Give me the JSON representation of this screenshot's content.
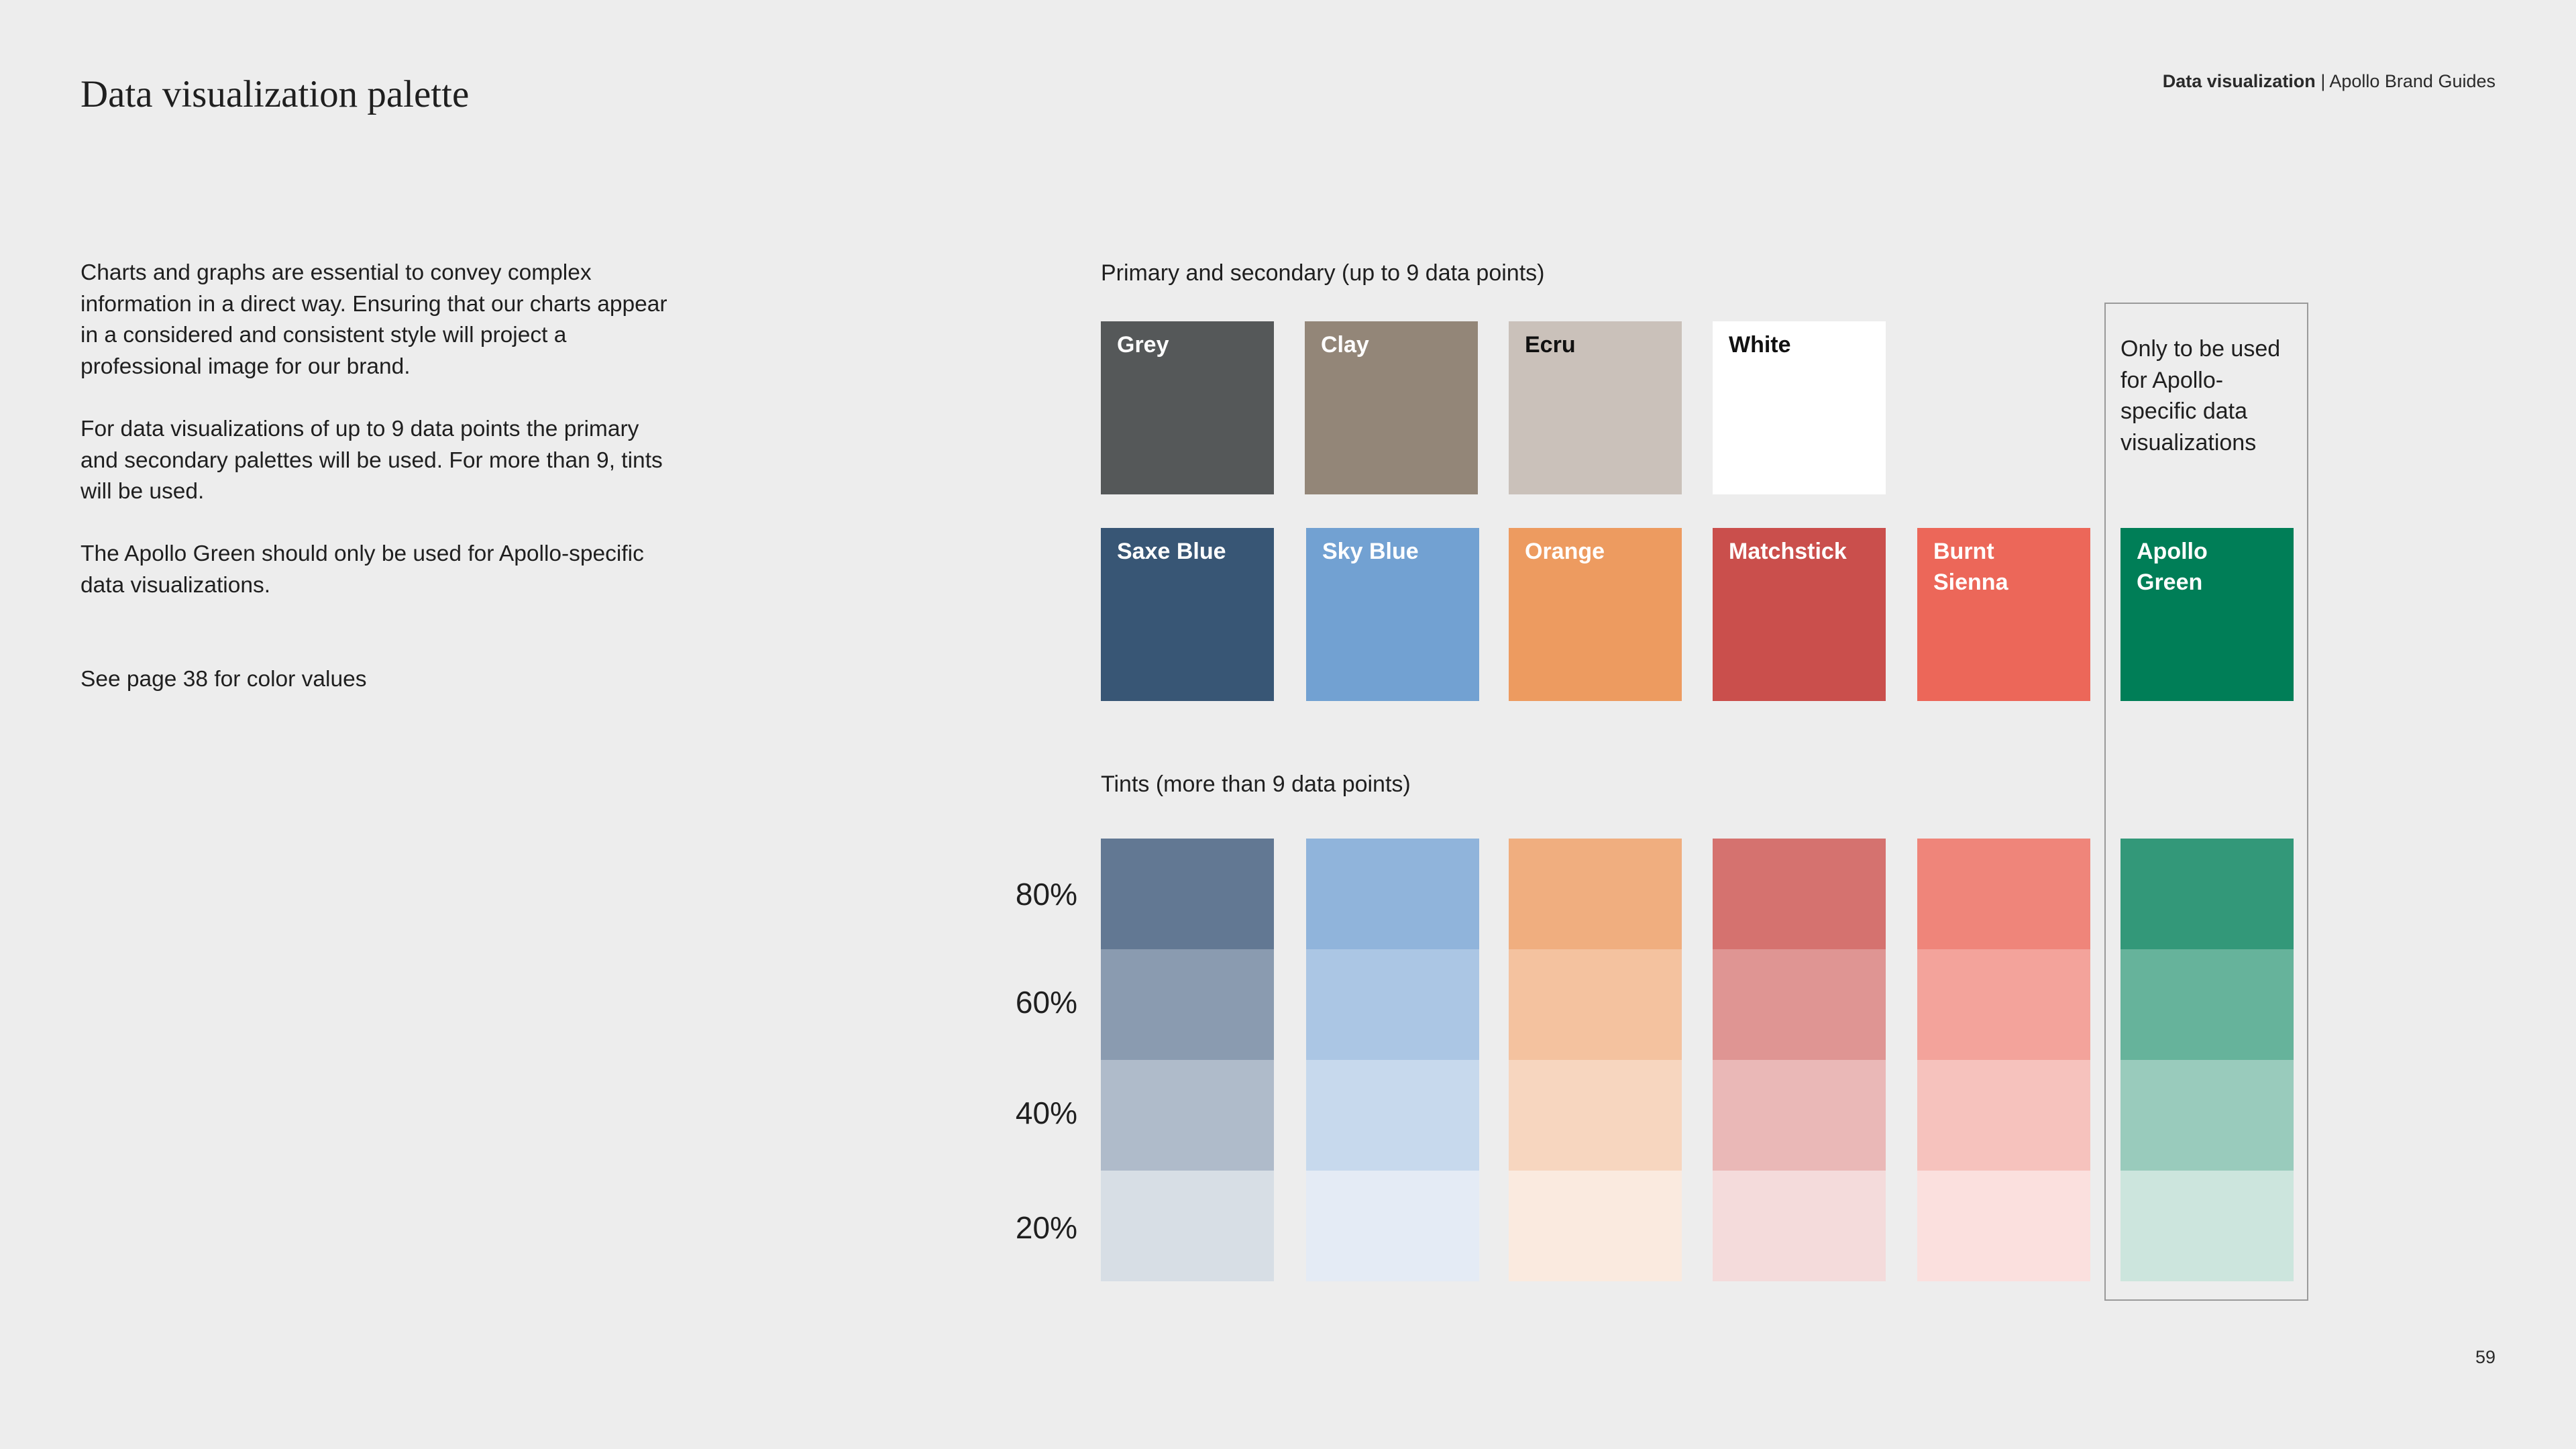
{
  "page": {
    "title": "Data visualization palette",
    "header_section": "Data visualization",
    "header_separator": " | ",
    "header_doc": "Apollo Brand Guides",
    "page_number": "59"
  },
  "intro": {
    "p1": "Charts and graphs are essential to convey complex information in a direct way. Ensuring that our charts appear in a considered and consistent style will project a professional image for our brand.",
    "p2": "For data visualizations of up to 9 data points the primary and secondary palettes will be used. For more than 9, tints will be used.",
    "p3": "The Apollo Green should only be used for Apollo-specific data visualizations.",
    "p4": "See page 38 for color values"
  },
  "primary": {
    "label": "Primary and secondary (up to 9 data points)",
    "swatches": [
      {
        "name": "Grey",
        "color": "#555859",
        "text_color": "#ffffff"
      },
      {
        "name": "Clay",
        "color": "#938678",
        "text_color": "#ffffff"
      },
      {
        "name": "Ecru",
        "color": "#cac1ba",
        "text_color": "#111111"
      },
      {
        "name": "White",
        "color": "#ffffff",
        "text_color": "#111111"
      }
    ]
  },
  "secondary": {
    "swatches": [
      {
        "name": "Saxe Blue",
        "color": "#385675",
        "text_color": "#ffffff"
      },
      {
        "name": "Sky Blue",
        "color": "#72a1d2",
        "text_color": "#ffffff"
      },
      {
        "name": "Orange",
        "color": "#ed9b60",
        "text_color": "#ffffff"
      },
      {
        "name": "Matchstick",
        "color": "#ca4f4c",
        "text_color": "#ffffff"
      },
      {
        "name": "Burnt Sienna",
        "color": "#ec6759",
        "text_color": "#ffffff"
      },
      {
        "name": "Apollo Green",
        "color": "#007e57",
        "text_color": "#ffffff"
      }
    ]
  },
  "restricted_note": "Only to be used for Apollo-specific data visualizations",
  "tints": {
    "label": "Tints (more than 9 data points)",
    "levels": [
      "80%",
      "60%",
      "40%",
      "20%"
    ],
    "columns": [
      {
        "name": "Saxe Blue",
        "colors": [
          "#627893",
          "#8a9bb0",
          "#afbbca",
          "#d7dee5"
        ]
      },
      {
        "name": "Sky Blue",
        "colors": [
          "#90b4db",
          "#abc6e4",
          "#c7d9ed",
          "#e4ebf5"
        ]
      },
      {
        "name": "Orange",
        "colors": [
          "#f0ae7f",
          "#f4c29f",
          "#f7d6bf",
          "#faeadf"
        ]
      },
      {
        "name": "Matchstick",
        "colors": [
          "#d5726f",
          "#df9593",
          "#eab8b7",
          "#f4dbdb"
        ]
      },
      {
        "name": "Burnt Sienna",
        "colors": [
          "#ef857a",
          "#f3a39b",
          "#f6c2bd",
          "#fbe0de"
        ]
      },
      {
        "name": "Apollo Green",
        "colors": [
          "#339879",
          "#66b39b",
          "#99cbbc",
          "#cce5dd"
        ]
      }
    ]
  }
}
